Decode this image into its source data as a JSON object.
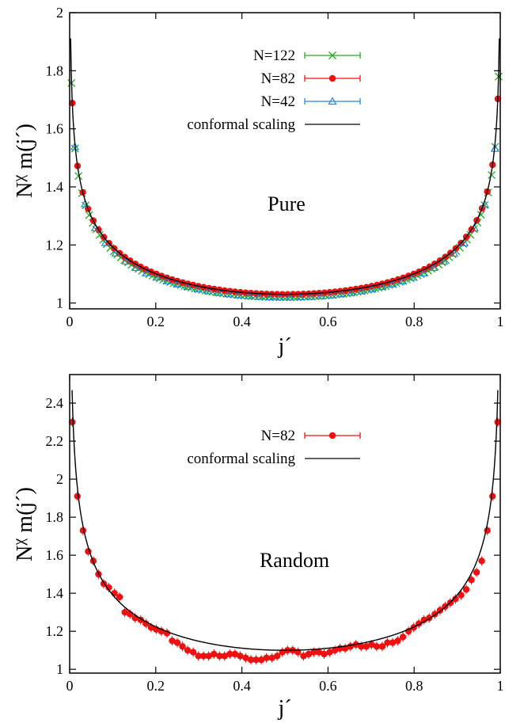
{
  "chart_data": [
    {
      "type": "scatter",
      "panel_label": "Pure",
      "xlabel": "j´",
      "ylabel_base": "N",
      "ylabel_sup": "χ",
      "ylabel_rest": " m(j´)",
      "xlim": [
        0,
        1
      ],
      "ylim": [
        0.98,
        2.0
      ],
      "xticks": [
        0,
        0.2,
        0.4,
        0.6,
        0.8,
        1
      ],
      "xtick_labels": [
        "0",
        "0.2",
        "0.4",
        "0.6",
        "0.8",
        "1"
      ],
      "yticks": [
        1,
        1.2,
        1.4,
        1.6,
        1.8,
        2
      ],
      "ytick_labels": [
        "1",
        "1.2",
        "1.4",
        "1.6",
        "1.8",
        "2"
      ],
      "legend_position": "top-right",
      "grid": false,
      "series": [
        {
          "name": "N=122",
          "marker": "x",
          "color": "#22aa22",
          "x_start": 0.0041,
          "x_step": 0.0082,
          "count": 122,
          "amplitude": 1.02,
          "exponent": 0.125
        },
        {
          "name": "N=82",
          "marker": "circle",
          "color": "#ee1111",
          "x_start": 0.0061,
          "x_step": 0.0122,
          "count": 82,
          "amplitude": 1.03,
          "exponent": 0.125
        },
        {
          "name": "N=42",
          "marker": "triangle",
          "color": "#2288dd",
          "x_start": 0.0119,
          "x_step": 0.0238,
          "count": 42,
          "amplitude": 1.02,
          "exponent": 0.125
        },
        {
          "name": "conformal scaling",
          "marker": "line",
          "color": "#000000",
          "amplitude": 1.03,
          "exponent": 0.125
        }
      ]
    },
    {
      "type": "scatter",
      "panel_label": "Random",
      "xlabel": "j´",
      "ylabel_base": "N",
      "ylabel_sup": "χ",
      "ylabel_rest": " m(j´)",
      "xlim": [
        0,
        1
      ],
      "ylim": [
        0.98,
        2.55
      ],
      "xticks": [
        0,
        0.2,
        0.4,
        0.6,
        0.8,
        1
      ],
      "xtick_labels": [
        "0",
        "0.2",
        "0.4",
        "0.6",
        "0.8",
        "1"
      ],
      "yticks": [
        1,
        1.2,
        1.4,
        1.6,
        1.8,
        2,
        2.2,
        2.4
      ],
      "ytick_labels": [
        "1",
        "1.2",
        "1.4",
        "1.6",
        "1.8",
        "2",
        "2.2",
        "2.4"
      ],
      "legend_position": "top-right",
      "grid": false,
      "series": [
        {
          "name": "N=82",
          "marker": "circle",
          "color": "#ee1111",
          "x": [
            0.006,
            0.018,
            0.031,
            0.043,
            0.055,
            0.067,
            0.079,
            0.091,
            0.104,
            0.116,
            0.128,
            0.14,
            0.152,
            0.165,
            0.177,
            0.189,
            0.201,
            0.213,
            0.226,
            0.238,
            0.25,
            0.262,
            0.274,
            0.287,
            0.299,
            0.311,
            0.323,
            0.335,
            0.348,
            0.36,
            0.372,
            0.384,
            0.396,
            0.409,
            0.421,
            0.433,
            0.445,
            0.457,
            0.47,
            0.482,
            0.494,
            0.506,
            0.518,
            0.53,
            0.543,
            0.555,
            0.567,
            0.579,
            0.591,
            0.604,
            0.616,
            0.628,
            0.64,
            0.652,
            0.665,
            0.677,
            0.689,
            0.701,
            0.713,
            0.726,
            0.738,
            0.75,
            0.762,
            0.774,
            0.787,
            0.799,
            0.811,
            0.823,
            0.835,
            0.848,
            0.86,
            0.872,
            0.884,
            0.896,
            0.909,
            0.921,
            0.933,
            0.945,
            0.957,
            0.97,
            0.982,
            0.994
          ],
          "y": [
            2.3,
            1.91,
            1.73,
            1.62,
            1.57,
            1.5,
            1.45,
            1.43,
            1.4,
            1.38,
            1.3,
            1.29,
            1.27,
            1.26,
            1.24,
            1.22,
            1.21,
            1.2,
            1.19,
            1.15,
            1.14,
            1.12,
            1.1,
            1.09,
            1.07,
            1.07,
            1.07,
            1.08,
            1.07,
            1.07,
            1.08,
            1.08,
            1.07,
            1.06,
            1.05,
            1.05,
            1.05,
            1.06,
            1.06,
            1.07,
            1.09,
            1.1,
            1.1,
            1.09,
            1.07,
            1.08,
            1.09,
            1.09,
            1.08,
            1.09,
            1.1,
            1.11,
            1.11,
            1.12,
            1.13,
            1.12,
            1.12,
            1.13,
            1.12,
            1.12,
            1.14,
            1.14,
            1.15,
            1.17,
            1.2,
            1.22,
            1.24,
            1.26,
            1.27,
            1.29,
            1.31,
            1.33,
            1.35,
            1.37,
            1.39,
            1.42,
            1.47,
            1.51,
            1.57,
            1.73,
            1.91,
            2.3
          ]
        },
        {
          "name": "conformal scaling",
          "marker": "line",
          "color": "#000000",
          "amplitude": 1.1,
          "exponent": 0.2
        }
      ]
    }
  ]
}
